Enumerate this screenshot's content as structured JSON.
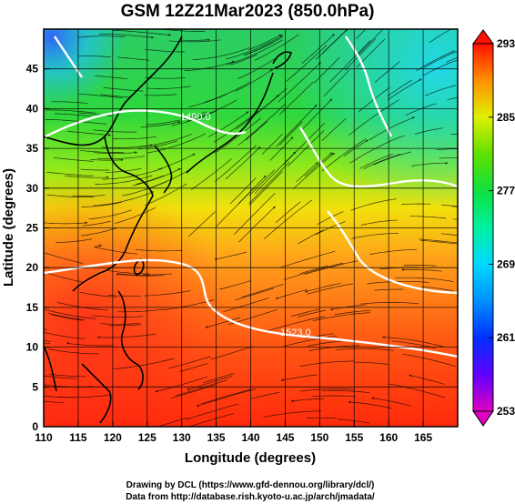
{
  "title": "GSM 12Z21Mar2023 (850.0hPa)",
  "x_axis": {
    "label": "Longitude (degrees)",
    "ticks": [
      "110",
      "115",
      "120",
      "125",
      "130",
      "135",
      "140",
      "145",
      "150",
      "155",
      "160",
      "165"
    ]
  },
  "y_axis": {
    "label": "Latitude (degrees)",
    "ticks": [
      "0",
      "5",
      "10",
      "15",
      "20",
      "25",
      "30",
      "35",
      "40",
      "45"
    ]
  },
  "colorbar": {
    "ticks": [
      "293",
      "285",
      "277",
      "269",
      "261",
      "253"
    ],
    "range": [
      253,
      293
    ],
    "colors": [
      "#e000c0",
      "#6000ff",
      "#0030ff",
      "#00c0ff",
      "#00ff80",
      "#20d000",
      "#c0ff00",
      "#ffb000",
      "#ff5000",
      "#ff1000"
    ]
  },
  "contours": {
    "labels": [
      "1523.0",
      "1490.0"
    ]
  },
  "credits": {
    "line1": "Drawing by DCL (https://www.gfd-dennou.org/library/dcl/)",
    "line2": "Data from http://database.rish.kyoto-u.ac.jp/arch/jmadata/"
  },
  "map": {
    "lon_range": [
      110,
      170
    ],
    "lat_range": [
      0,
      50
    ],
    "grid_spacing_deg": 5
  }
}
